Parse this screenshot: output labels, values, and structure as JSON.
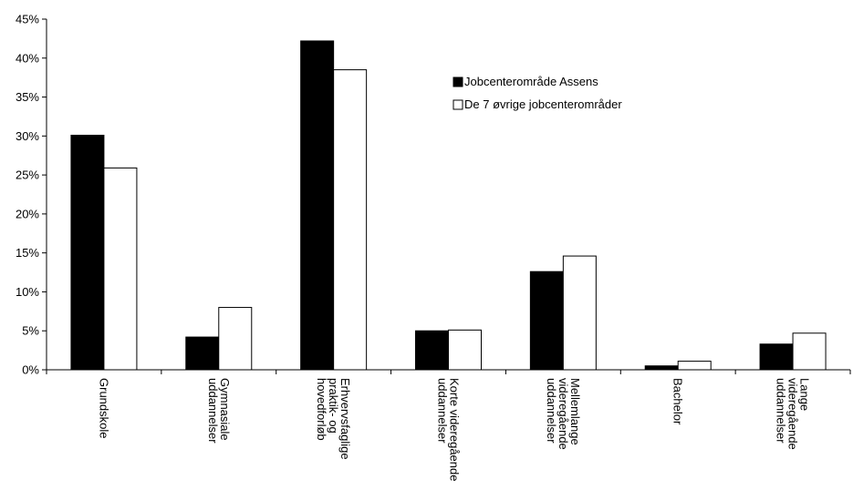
{
  "chart_data": {
    "type": "bar",
    "title": "",
    "xlabel": "",
    "ylabel": "",
    "categories": [
      [
        "Grundskole"
      ],
      [
        "Gymnasiale",
        "uddannelser"
      ],
      [
        "Erhvervsfaglige",
        "praktik- og",
        "hovedforløb"
      ],
      [
        "Korte videregående",
        "uddannelser"
      ],
      [
        "Mellemlange",
        "videregående",
        "uddannelser"
      ],
      [
        "Bachelor"
      ],
      [
        "Lange",
        "videregående",
        "uddannelser"
      ]
    ],
    "series": [
      {
        "name": "Jobcenterområde Assens",
        "color": "#000000",
        "values": [
          30.1,
          4.2,
          42.2,
          5.0,
          12.6,
          0.5,
          3.3
        ]
      },
      {
        "name": "De 7 øvrige jobcenterområder",
        "color": "#ffffff",
        "values": [
          25.9,
          8.0,
          38.5,
          5.1,
          14.6,
          1.1,
          4.7
        ]
      }
    ],
    "ylim": [
      0,
      45
    ],
    "yticks": [
      "0%",
      "5%",
      "10%",
      "15%",
      "20%",
      "25%",
      "30%",
      "35%",
      "40%",
      "45%"
    ],
    "grid": false,
    "legend_position": "top-right"
  }
}
